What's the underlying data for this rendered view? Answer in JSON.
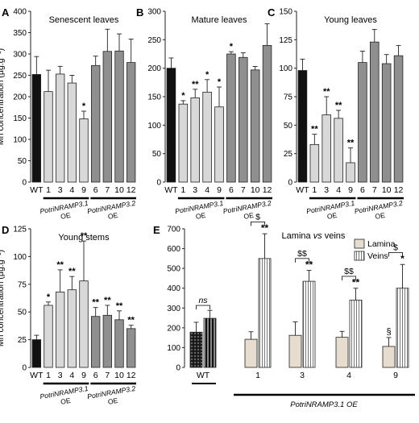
{
  "ylabel": "Mn concentration (µg.g⁻¹)",
  "colors": {
    "wt": "#111111",
    "line31": "#d8d8d8",
    "line32": "#8f8f8f",
    "lamina": "#e6ddcf",
    "stroke": "#222222"
  },
  "panels": [
    {
      "letter": "A",
      "title": "Senescent leaves",
      "ylim": [
        0,
        400
      ],
      "yticks": [
        0,
        50,
        100,
        150,
        200,
        250,
        300,
        350,
        400
      ],
      "categories": [
        "WT",
        "1",
        "3",
        "4",
        "9",
        "6",
        "7",
        "10",
        "12"
      ],
      "groups": [
        "wt",
        "line31",
        "line31",
        "line31",
        "line31",
        "line32",
        "line32",
        "line32",
        "line32"
      ],
      "values": [
        252,
        212,
        253,
        232,
        148,
        273,
        306,
        307,
        280
      ],
      "errors": [
        42,
        50,
        18,
        18,
        18,
        22,
        52,
        40,
        55
      ],
      "sig": [
        "",
        "",
        "",
        "",
        "*",
        "",
        "",
        "",
        ""
      ],
      "group_labels": [
        [
          "PotriNRAMP3.1",
          "OE"
        ],
        [
          "PotriNRAMP3.2",
          "OE"
        ]
      ]
    },
    {
      "letter": "B",
      "title": "Mature leaves",
      "ylim": [
        0,
        300
      ],
      "yticks": [
        0,
        50,
        100,
        150,
        200,
        250,
        300
      ],
      "categories": [
        "WT",
        "1",
        "3",
        "4",
        "9",
        "6",
        "7",
        "10",
        "12"
      ],
      "groups": [
        "wt",
        "line31",
        "line31",
        "line31",
        "line31",
        "line32",
        "line32",
        "line32",
        "line32"
      ],
      "values": [
        200,
        137,
        148,
        158,
        132,
        225,
        219,
        197,
        240
      ],
      "errors": [
        18,
        6,
        15,
        22,
        35,
        4,
        8,
        6,
        38
      ],
      "sig": [
        "",
        "*",
        "**",
        "*",
        "*",
        "*",
        "",
        "",
        ""
      ],
      "group_labels": [
        [
          "PotriNRAMP3.1",
          "OE"
        ],
        [
          "PotriNRAMP3.2",
          "OE"
        ]
      ]
    },
    {
      "letter": "C",
      "title": "Young leaves",
      "ylim": [
        0,
        150
      ],
      "yticks": [
        0,
        25,
        50,
        75,
        100,
        125,
        150
      ],
      "categories": [
        "WT",
        "1",
        "3",
        "4",
        "9",
        "6",
        "7",
        "10",
        "12"
      ],
      "groups": [
        "wt",
        "line31",
        "line31",
        "line31",
        "line31",
        "line32",
        "line32",
        "line32",
        "line32"
      ],
      "values": [
        98,
        33,
        59,
        56,
        17,
        105,
        123,
        104,
        111
      ],
      "errors": [
        10,
        9,
        16,
        7,
        13,
        10,
        11,
        8,
        9
      ],
      "sig": [
        "",
        "**",
        "**",
        "**",
        "**",
        "",
        "",
        "",
        ""
      ],
      "group_labels": [
        [
          "PotriNRAMP3.1",
          "OE"
        ],
        [
          "PotriNRAMP3.2",
          "OE"
        ]
      ]
    },
    {
      "letter": "D",
      "title": "Young stems",
      "ylim": [
        0,
        125
      ],
      "yticks": [
        0,
        25,
        50,
        75,
        100,
        125
      ],
      "categories": [
        "WT",
        "1",
        "3",
        "4",
        "9",
        "6",
        "7",
        "10",
        "12"
      ],
      "groups": [
        "wt",
        "line31",
        "line31",
        "line31",
        "line31",
        "line32",
        "line32",
        "line32",
        "line32"
      ],
      "values": [
        25,
        56,
        68,
        70,
        78,
        46,
        47,
        43,
        35
      ],
      "errors": [
        4,
        3,
        20,
        12,
        36,
        8,
        9,
        8,
        3
      ],
      "sig": [
        "",
        "*",
        "**",
        "**",
        "**",
        "**",
        "**",
        "**",
        "**"
      ],
      "group_labels": [
        [
          "PotriNRAMP3.1",
          "OE"
        ],
        [
          "PotriNRAMP3.2",
          "OE"
        ]
      ]
    }
  ],
  "panel_e": {
    "letter": "E",
    "title_main": "Lamina ",
    "title_vs": "vs",
    "title_end": " veins",
    "ylim": [
      0,
      700
    ],
    "yticks": [
      0,
      100,
      200,
      300,
      400,
      500,
      600,
      700
    ],
    "categories": [
      "WT",
      "1",
      "3",
      "4",
      "9"
    ],
    "lamina": [
      178,
      142,
      162,
      152,
      106
    ],
    "lamina_err": [
      50,
      38,
      68,
      30,
      45
    ],
    "veins": [
      248,
      550,
      435,
      340,
      400
    ],
    "veins_err": [
      40,
      125,
      55,
      60,
      120
    ],
    "vein_sig": [
      "",
      "**",
      "**",
      "**",
      "*"
    ],
    "lamina_sig": [
      "",
      "",
      "",
      "",
      "§"
    ],
    "bracket": [
      "ns",
      "$",
      "$$",
      "$$",
      "$"
    ],
    "legend": [
      "Lamina",
      "Veins"
    ],
    "group_label": "PotriNRAMP3.1 OE"
  }
}
